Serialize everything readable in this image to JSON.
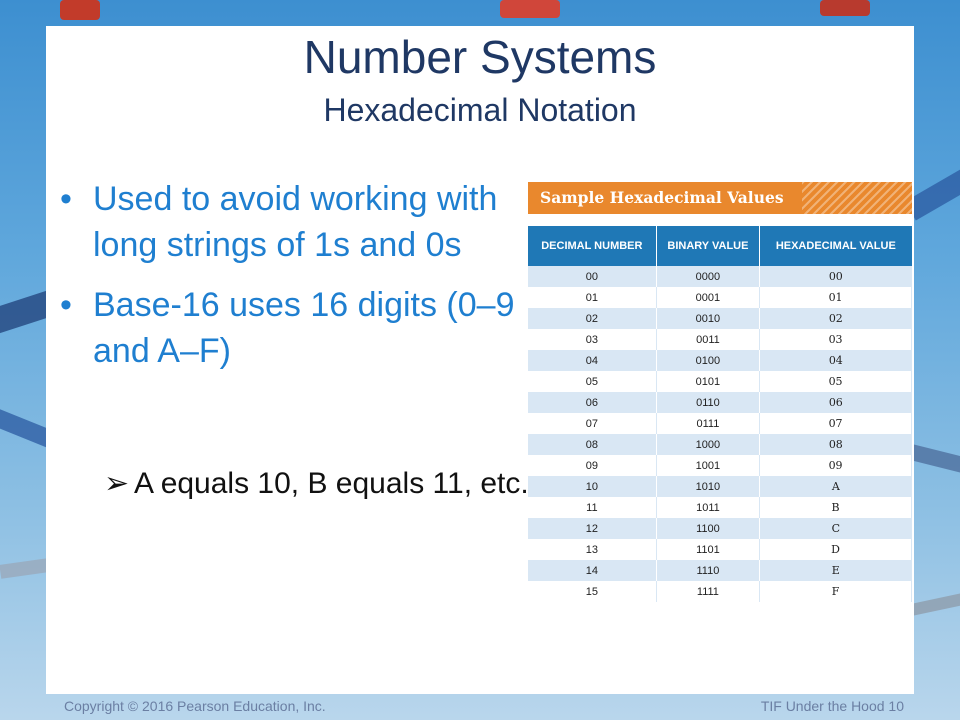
{
  "title": "Number Systems",
  "subtitle": "Hexadecimal Notation",
  "bullets": [
    "Used to avoid working with long strings of 1s and 0s",
    "Base-16 uses 16 digits (0–9 and A–F)"
  ],
  "sub_bullet": "A equals 10, B equals 11, etc.",
  "bullet_symbol": "•",
  "sub_bullet_symbol": "➢",
  "table": {
    "caption": "Sample Hexadecimal Values",
    "columns": [
      "DECIMAL NUMBER",
      "BINARY VALUE",
      "HEXADECIMAL VALUE"
    ],
    "rows": [
      [
        "00",
        "0000",
        "00"
      ],
      [
        "01",
        "0001",
        "01"
      ],
      [
        "02",
        "0010",
        "02"
      ],
      [
        "03",
        "0011",
        "03"
      ],
      [
        "04",
        "0100",
        "04"
      ],
      [
        "05",
        "0101",
        "05"
      ],
      [
        "06",
        "0110",
        "06"
      ],
      [
        "07",
        "0111",
        "07"
      ],
      [
        "08",
        "1000",
        "08"
      ],
      [
        "09",
        "1001",
        "09"
      ],
      [
        "10",
        "1010",
        "A"
      ],
      [
        "11",
        "1011",
        "B"
      ],
      [
        "12",
        "1100",
        "C"
      ],
      [
        "13",
        "1101",
        "D"
      ],
      [
        "14",
        "1110",
        "E"
      ],
      [
        "15",
        "1111",
        "F"
      ]
    ]
  },
  "footer": {
    "copyright": "Copyright © 2016 Pearson Education, Inc.",
    "slide_label": "TIF Under the Hood 10"
  },
  "colors": {
    "title": "#1f3864",
    "bullet_text": "#1f7fd0",
    "table_caption_bg": "#e9882d",
    "table_header_bg": "#1f78b6",
    "table_stripe": "#d9e7f4"
  }
}
